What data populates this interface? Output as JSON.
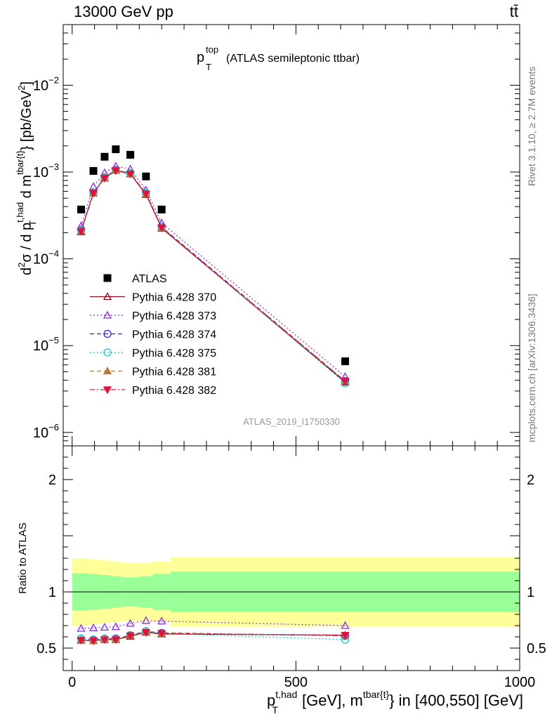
{
  "header": {
    "left": "13000 GeV pp",
    "right": "tt̄"
  },
  "side_labels": {
    "rivet": "Rivet 3.1.10, ≥ 2.7M events",
    "mcplots": "mcplots.cern.ch [arXiv:1306.3436]"
  },
  "chart_data": [
    {
      "type": "scatter",
      "title_main": "p",
      "title_sup": "top",
      "title_sub": "T",
      "title_rest": "(ATLAS semileptonic ttbar)",
      "watermark": "ATLAS_2019_I1750330",
      "ylabel": "d²σ / d p_T^{t,had} d m^{tbar{t}} [pb/GeV²]",
      "ylabel_parts": {
        "a": "d",
        "a_sup": "2",
        "b": "σ / d p",
        "b_sup": "t,had",
        "b_sub": "T",
        "c": " d m",
        "c_sup": "tbar{t}",
        "d": "} [pb/GeV",
        "d_sup": "2",
        "e": "]"
      },
      "yscale": "log",
      "ylim": [
        7e-07,
        0.05
      ],
      "yticks": [
        {
          "value": 1e-06,
          "base": "10",
          "exp": "−6"
        },
        {
          "value": 1e-05,
          "base": "10",
          "exp": "−5"
        },
        {
          "value": 0.0001,
          "base": "10",
          "exp": "−4"
        },
        {
          "value": 0.001,
          "base": "10",
          "exp": "−3"
        },
        {
          "value": 0.01,
          "base": "10",
          "exp": "−2"
        }
      ],
      "xlim": [
        -20,
        1000
      ],
      "x": [
        20,
        47.5,
        72.5,
        97.5,
        130,
        165,
        200,
        610
      ],
      "series": [
        {
          "name": "ATLAS",
          "color": "#000000",
          "marker": "square-filled",
          "line": "none",
          "values": [
            0.00037,
            0.00103,
            0.0015,
            0.00183,
            0.00158,
            0.00089,
            0.00037,
            6.6e-06
          ]
        },
        {
          "name": "Pythia 6.428 370",
          "color": "#8b0a1e",
          "marker": "triangle-up-open",
          "line": "solid",
          "values": [
            0.000205,
            0.00057,
            0.00085,
            0.00104,
            0.00095,
            0.00055,
            0.000225,
            3.8e-06
          ]
        },
        {
          "name": "Pythia 6.428 373",
          "color": "#8a2be2",
          "marker": "triangle-up-open",
          "line": "dotted",
          "values": [
            0.00024,
            0.00068,
            0.00098,
            0.00117,
            0.00108,
            0.00062,
            0.00026,
            4.4e-06
          ]
        },
        {
          "name": "Pythia 6.428 374",
          "color": "#2222dd",
          "marker": "circle-open",
          "line": "dashed",
          "values": [
            0.000215,
            0.00058,
            0.00087,
            0.00106,
            0.00097,
            0.00057,
            0.000233,
            3.9e-06
          ]
        },
        {
          "name": "Pythia 6.428 375",
          "color": "#11c7c7",
          "marker": "circle-open",
          "line": "dotted",
          "values": [
            0.000213,
            0.00058,
            0.00087,
            0.00105,
            0.00097,
            0.00057,
            0.00023,
            3.7e-06
          ]
        },
        {
          "name": "Pythia 6.428 381",
          "color": "#b07a45",
          "marker": "triangle-up-filled",
          "line": "dashed",
          "values": [
            0.00021,
            0.00057,
            0.00086,
            0.00105,
            0.00096,
            0.00056,
            0.00023,
            3.9e-06
          ]
        },
        {
          "name": "Pythia 6.428 382",
          "color": "#dc143c",
          "marker": "triangle-down-filled",
          "line": "dashdot",
          "values": [
            0.000208,
            0.00057,
            0.00085,
            0.00104,
            0.00095,
            0.00056,
            0.000228,
            3.9e-06
          ]
        }
      ]
    },
    {
      "type": "scatter",
      "ylabel": "Ratio to ATLAS",
      "ylim": [
        0.3,
        2.3
      ],
      "yticks": [
        {
          "value": 0.5,
          "label": "0.5"
        },
        {
          "value": 1,
          "label": "1"
        },
        {
          "value": 2,
          "label": "2"
        }
      ],
      "xlim": [
        -20,
        1000
      ],
      "xticks": [
        {
          "value": 0,
          "label": "0"
        },
        {
          "value": 500,
          "label": "500"
        },
        {
          "value": 1000,
          "label": "1000"
        }
      ],
      "xlabel_parts": {
        "a": "p",
        "a_sup": "t,had",
        "a_sub": "T",
        "b": " [GeV], m",
        "b_sup": "tbar{t}",
        "c": "} in [400,550] [GeV]"
      },
      "bands": [
        {
          "x0": 0,
          "x1": 35,
          "inner": [
            0.835,
            1.165
          ],
          "outer": [
            0.7,
            1.3
          ]
        },
        {
          "x0": 35,
          "x1": 60,
          "inner": [
            0.84,
            1.16
          ],
          "outer": [
            0.71,
            1.29
          ]
        },
        {
          "x0": 60,
          "x1": 85,
          "inner": [
            0.85,
            1.15
          ],
          "outer": [
            0.72,
            1.28
          ]
        },
        {
          "x0": 85,
          "x1": 110,
          "inner": [
            0.86,
            1.14
          ],
          "outer": [
            0.73,
            1.27
          ]
        },
        {
          "x0": 110,
          "x1": 150,
          "inner": [
            0.87,
            1.13
          ],
          "outer": [
            0.74,
            1.26
          ]
        },
        {
          "x0": 150,
          "x1": 180,
          "inner": [
            0.86,
            1.14
          ],
          "outer": [
            0.74,
            1.26
          ]
        },
        {
          "x0": 180,
          "x1": 220,
          "inner": [
            0.84,
            1.16
          ],
          "outer": [
            0.73,
            1.27
          ]
        },
        {
          "x0": 220,
          "x1": 1000,
          "inner": [
            0.82,
            1.18
          ],
          "outer": [
            0.69,
            1.31
          ]
        }
      ],
      "x": [
        20,
        47.5,
        72.5,
        97.5,
        130,
        165,
        200,
        610
      ],
      "series": [
        {
          "name": "Pythia 6.428 370",
          "color": "#8b0a1e",
          "marker": "triangle-up-open",
          "line": "solid",
          "values": [
            0.57,
            0.565,
            0.575,
            0.575,
            0.605,
            0.64,
            0.625,
            0.615
          ]
        },
        {
          "name": "Pythia 6.428 373",
          "color": "#8a2be2",
          "marker": "triangle-up-open",
          "line": "dotted",
          "values": [
            0.675,
            0.68,
            0.685,
            0.69,
            0.72,
            0.745,
            0.74,
            0.7
          ]
        },
        {
          "name": "Pythia 6.428 374",
          "color": "#2222dd",
          "marker": "circle-open",
          "line": "dashed",
          "values": [
            0.585,
            0.575,
            0.585,
            0.585,
            0.615,
            0.65,
            0.635,
            0.61
          ]
        },
        {
          "name": "Pythia 6.428 375",
          "color": "#11c7c7",
          "marker": "circle-open",
          "line": "dotted",
          "values": [
            0.585,
            0.57,
            0.585,
            0.58,
            0.615,
            0.65,
            0.63,
            0.575
          ]
        },
        {
          "name": "Pythia 6.428 381",
          "color": "#b07a45",
          "marker": "triangle-up-filled",
          "line": "dashed",
          "values": [
            0.575,
            0.565,
            0.58,
            0.58,
            0.615,
            0.645,
            0.63,
            0.615
          ]
        },
        {
          "name": "Pythia 6.428 382",
          "color": "#dc143c",
          "marker": "triangle-down-filled",
          "line": "dashdot",
          "values": [
            0.57,
            0.565,
            0.575,
            0.575,
            0.61,
            0.64,
            0.63,
            0.615
          ]
        }
      ]
    }
  ]
}
